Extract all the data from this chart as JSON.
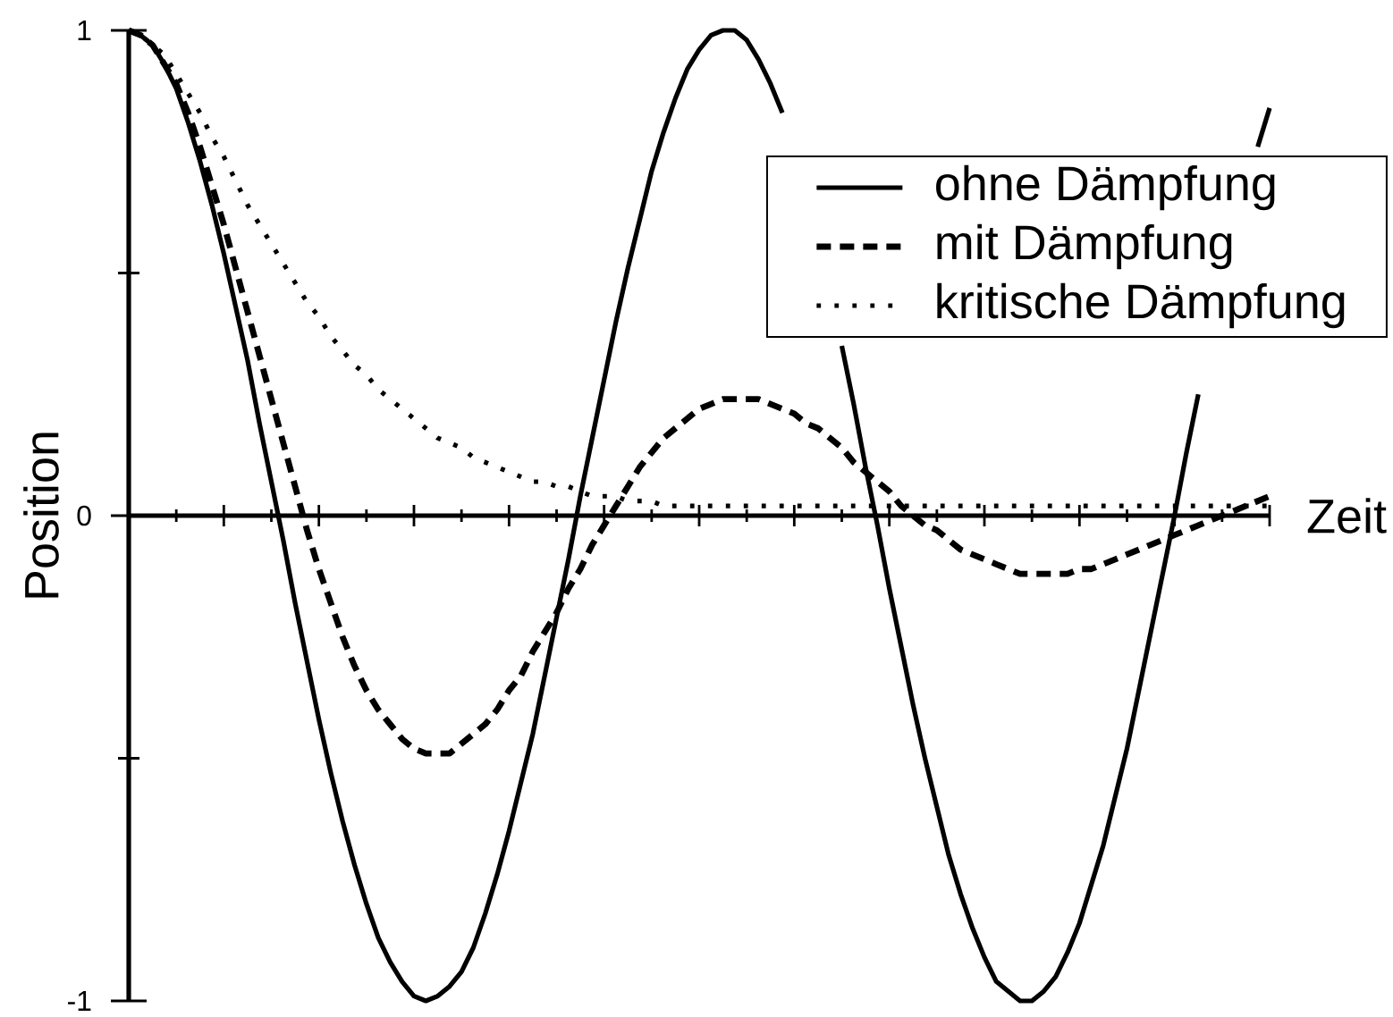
{
  "chart_data": {
    "type": "line",
    "xlabel": "Zeit",
    "ylabel": "Position",
    "categories": [
      null,
      null,
      null,
      null,
      null,
      null,
      null,
      null,
      null,
      null,
      null,
      null,
      null,
      null,
      null,
      null,
      null,
      null,
      null,
      null,
      null,
      null,
      null,
      null,
      null,
      null,
      null,
      null,
      null,
      null,
      null,
      null,
      null,
      null,
      null,
      null,
      null,
      null,
      null,
      null,
      null,
      null,
      null,
      null,
      null,
      null,
      null,
      null,
      null,
      null,
      null,
      null,
      null,
      null,
      null,
      null,
      null,
      null,
      null,
      null,
      null,
      null,
      null,
      null,
      null,
      null,
      null,
      null,
      null,
      null,
      null,
      null,
      null,
      null,
      null,
      null,
      null,
      null,
      null,
      null,
      null,
      null,
      null,
      null,
      null,
      null,
      null,
      null,
      null,
      null,
      null,
      null,
      null,
      null,
      null,
      null,
      null
    ],
    "series": [
      {
        "name": "ohne Dämpfung",
        "color": "#000000",
        "line_style": "solid",
        "values": [
          1,
          0.99,
          0.97,
          0.93,
          0.88,
          0.81,
          0.73,
          0.64,
          0.54,
          0.43,
          0.32,
          0.19,
          0.07,
          -0.05,
          -0.18,
          -0.3,
          -0.42,
          -0.53,
          -0.63,
          -0.72,
          -0.8,
          -0.87,
          -0.92,
          -0.96,
          -0.99,
          -1,
          -0.99,
          -0.97,
          -0.94,
          -0.89,
          -0.82,
          -0.74,
          -0.65,
          -0.55,
          -0.45,
          -0.33,
          -0.21,
          -0.09,
          0.04,
          0.16,
          0.28,
          0.4,
          0.51,
          0.61,
          0.71,
          0.79,
          0.86,
          0.92,
          0.96,
          0.99,
          1,
          1,
          0.98,
          0.94,
          0.89,
          0.83,
          null,
          null,
          null,
          null,
          0.35,
          0.23,
          0.1,
          -0.02,
          -0.15,
          -0.27,
          -0.39,
          -0.5,
          -0.6,
          -0.7,
          -0.78,
          -0.85,
          -0.91,
          -0.96,
          -0.98,
          -1,
          -1,
          -0.98,
          -0.95,
          -0.9,
          -0.84,
          -0.76,
          -0.68,
          -0.58,
          -0.48,
          -0.36,
          -0.24,
          -0.12,
          0,
          0.13,
          0.25,
          null,
          null,
          null,
          null,
          0.76,
          0.84
        ]
      },
      {
        "name": "mit Dämpfung",
        "color": "#000000",
        "line_style": "dashed",
        "values": [
          1,
          0.99,
          0.97,
          0.93,
          0.89,
          0.83,
          0.76,
          0.68,
          0.6,
          0.51,
          0.42,
          0.33,
          0.24,
          0.15,
          0.06,
          -0.03,
          -0.11,
          -0.18,
          -0.25,
          -0.31,
          -0.36,
          -0.4,
          -0.43,
          -0.46,
          -0.48,
          -0.49,
          -0.49,
          -0.49,
          -0.47,
          -0.45,
          -0.43,
          -0.4,
          -0.36,
          -0.33,
          -0.28,
          -0.24,
          -0.2,
          -0.15,
          -0.11,
          -0.06,
          -0.02,
          0.02,
          0.06,
          0.1,
          0.13,
          0.16,
          0.18,
          0.2,
          0.22,
          0.23,
          0.24,
          0.24,
          0.24,
          0.24,
          0.23,
          0.22,
          0.21,
          0.19,
          0.18,
          0.16,
          0.14,
          0.11,
          0.09,
          0.07,
          0.05,
          0.02,
          0,
          -0.02,
          -0.03,
          -0.05,
          -0.07,
          -0.08,
          -0.09,
          -0.1,
          -0.11,
          -0.12,
          -0.12,
          -0.12,
          -0.12,
          -0.12,
          -0.11,
          -0.11,
          -0.1,
          -0.09,
          -0.08,
          -0.07,
          -0.06,
          -0.05,
          -0.04,
          -0.03,
          -0.02,
          -0.01,
          0,
          0.01,
          0.02,
          0.03,
          0.04
        ]
      },
      {
        "name": "kritische Dämpfung",
        "color": "#000000",
        "line_style": "dotted",
        "values": [
          1,
          0.99,
          0.97,
          0.95,
          0.91,
          0.87,
          0.83,
          0.78,
          0.74,
          0.69,
          0.64,
          0.6,
          0.56,
          0.52,
          0.48,
          0.44,
          0.41,
          0.37,
          0.34,
          0.31,
          0.29,
          0.26,
          0.24,
          0.22,
          0.2,
          0.18,
          0.16,
          0.15,
          0.14,
          0.12,
          0.11,
          0.1,
          0.09,
          0.08,
          0.07,
          0.07,
          0.06,
          0.06,
          0.05,
          0.04,
          0.04,
          0.04,
          0.03,
          0.03,
          0.03,
          0.02,
          0.02,
          0.02,
          0.02,
          0.02,
          0.02,
          0.02,
          0.02,
          0.02,
          0.02,
          0.02,
          0.02,
          0.02,
          0.02,
          0.02,
          0.02,
          0.02,
          0.02,
          0.02,
          0.02,
          0.02,
          0.02,
          0.02,
          0.02,
          0.02,
          0.02,
          0.02,
          0.02,
          0.02,
          0.02,
          0.02,
          0.02,
          0.02,
          0.02,
          0.02,
          0.02,
          0.02,
          0.02,
          0.02,
          0.02,
          0.02,
          0.02,
          0.02,
          0.02,
          0.02,
          0.02,
          0.02,
          0.02,
          0.02,
          0.02,
          0.02,
          0.02
        ]
      }
    ],
    "ylim": [
      -1,
      1
    ],
    "yticks": [
      -1,
      {
        "value": -0.5,
        "label": null
      },
      0,
      {
        "value": 0.5,
        "label": null
      },
      1
    ],
    "legend": "top right",
    "tick_labels": "y"
  }
}
